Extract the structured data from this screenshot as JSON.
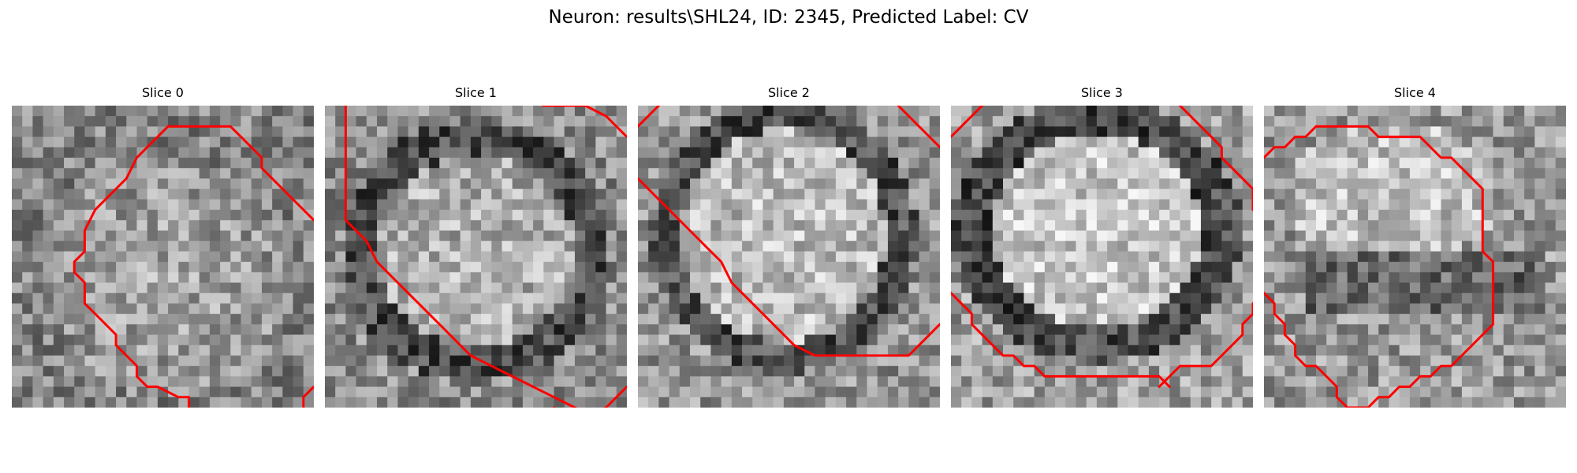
{
  "figure": {
    "title": "Neuron: results\\SHL24, ID: 2345, Predicted Label: CV"
  },
  "image_grid": {
    "cols": 29,
    "rows": 29
  },
  "contour_color": "#ff0000",
  "slices": [
    {
      "title": "Slice 0",
      "contours": [
        [
          [
            15,
            2
          ],
          [
            14,
            3
          ],
          [
            12,
            5
          ],
          [
            11,
            7
          ],
          [
            8,
            10
          ],
          [
            7,
            12
          ],
          [
            7,
            14
          ],
          [
            6,
            15
          ],
          [
            6,
            16
          ],
          [
            7,
            17
          ],
          [
            7,
            19
          ],
          [
            8,
            20
          ],
          [
            9,
            21
          ],
          [
            10,
            22
          ],
          [
            10,
            23
          ],
          [
            11,
            24
          ],
          [
            12,
            25
          ],
          [
            12,
            26
          ],
          [
            13,
            27
          ],
          [
            14,
            27
          ],
          [
            16,
            28
          ],
          [
            17,
            28
          ],
          [
            17,
            29
          ]
        ],
        [
          [
            29,
            11
          ],
          [
            27,
            9
          ],
          [
            25,
            7
          ],
          [
            24,
            6
          ],
          [
            24,
            5
          ],
          [
            23,
            4
          ],
          [
            22,
            3
          ],
          [
            21,
            2
          ],
          [
            19,
            2
          ],
          [
            17,
            2
          ],
          [
            15,
            2
          ]
        ],
        [
          [
            28,
            29
          ],
          [
            28,
            28
          ],
          [
            29,
            27
          ]
        ]
      ]
    },
    {
      "title": "Slice 1",
      "contours": [
        [
          [
            29,
            3
          ],
          [
            28,
            2
          ],
          [
            27,
            1
          ],
          [
            25,
            0
          ],
          [
            23,
            0
          ],
          [
            21,
            0
          ],
          [
            19,
            -1
          ],
          [
            17,
            -2
          ],
          [
            15,
            -2
          ],
          [
            12,
            -2
          ],
          [
            10,
            -2
          ],
          [
            8,
            -2
          ],
          [
            5,
            -2
          ],
          [
            2,
            -1
          ],
          [
            2,
            0
          ],
          [
            2,
            3
          ],
          [
            2,
            5
          ],
          [
            2,
            8
          ],
          [
            2,
            11
          ],
          [
            3,
            12
          ],
          [
            4,
            13
          ],
          [
            5,
            15
          ],
          [
            6,
            16
          ],
          [
            7,
            17
          ],
          [
            9,
            19
          ],
          [
            11,
            21
          ],
          [
            12,
            22
          ],
          [
            13,
            23
          ],
          [
            14,
            24
          ],
          [
            16,
            25
          ],
          [
            18,
            26
          ],
          [
            20,
            27
          ],
          [
            22,
            28
          ],
          [
            24,
            29
          ],
          [
            26,
            30
          ],
          [
            28,
            31
          ],
          [
            29,
            32
          ]
        ],
        [
          [
            22,
            29
          ],
          [
            23,
            30
          ],
          [
            24,
            30
          ],
          [
            25,
            30
          ],
          [
            27,
            29
          ],
          [
            28,
            28
          ],
          [
            29,
            27
          ]
        ]
      ]
    },
    {
      "title": "Slice 2",
      "contours": [
        [
          [
            0,
            7
          ],
          [
            2,
            9
          ],
          [
            4,
            11
          ],
          [
            5,
            12
          ],
          [
            7,
            14
          ],
          [
            8,
            15
          ],
          [
            9,
            17
          ],
          [
            10,
            18
          ],
          [
            11,
            19
          ],
          [
            12,
            20
          ],
          [
            13,
            21
          ],
          [
            14,
            22
          ],
          [
            15,
            23
          ],
          [
            17,
            24
          ],
          [
            19,
            24
          ],
          [
            21,
            24
          ],
          [
            23,
            24
          ],
          [
            25,
            24
          ],
          [
            26,
            24
          ],
          [
            27,
            23
          ],
          [
            28,
            22
          ],
          [
            29,
            21
          ]
        ],
        [
          [
            29,
            4
          ],
          [
            28,
            3
          ],
          [
            27,
            2
          ],
          [
            26,
            1
          ],
          [
            25,
            0
          ],
          [
            24,
            -1
          ],
          [
            23,
            -2
          ],
          [
            21,
            -3
          ],
          [
            19,
            -4
          ],
          [
            17,
            -5
          ]
        ],
        [
          [
            0,
            2
          ],
          [
            1,
            1
          ],
          [
            2,
            0
          ],
          [
            3,
            -1
          ],
          [
            4,
            -2
          ],
          [
            5,
            -3
          ]
        ]
      ]
    },
    {
      "title": "Slice 3",
      "contours": [
        [
          [
            0,
            3
          ],
          [
            1,
            2
          ],
          [
            2,
            1
          ],
          [
            3,
            0
          ],
          [
            4,
            -1
          ],
          [
            5,
            -2
          ],
          [
            6,
            -3
          ],
          [
            8,
            -4
          ],
          [
            10,
            -4
          ],
          [
            12,
            -4
          ],
          [
            14,
            -4
          ],
          [
            15,
            -3
          ],
          [
            17,
            -3
          ],
          [
            19,
            -3
          ],
          [
            20,
            -2
          ],
          [
            21,
            -1
          ],
          [
            22,
            0
          ],
          [
            23,
            1
          ],
          [
            24,
            2
          ],
          [
            25,
            3
          ],
          [
            26,
            4
          ],
          [
            26,
            5
          ],
          [
            27,
            6
          ],
          [
            28,
            7
          ],
          [
            29,
            8
          ],
          [
            29,
            9
          ],
          [
            29,
            10
          ],
          [
            30,
            11
          ],
          [
            30,
            12
          ],
          [
            30,
            14
          ],
          [
            30,
            16
          ],
          [
            30,
            18
          ],
          [
            29,
            19
          ],
          [
            29,
            20
          ],
          [
            28,
            21
          ],
          [
            28,
            22
          ],
          [
            27,
            23
          ],
          [
            26,
            24
          ],
          [
            25,
            25
          ],
          [
            24,
            25
          ],
          [
            23,
            25
          ],
          [
            22,
            25
          ],
          [
            21,
            26
          ],
          [
            20,
            27
          ]
        ],
        [
          [
            0,
            18
          ],
          [
            1,
            19
          ],
          [
            2,
            20
          ],
          [
            2,
            21
          ],
          [
            3,
            22
          ],
          [
            4,
            23
          ],
          [
            5,
            24
          ],
          [
            6,
            24
          ],
          [
            7,
            25
          ],
          [
            8,
            25
          ],
          [
            9,
            26
          ],
          [
            10,
            26
          ],
          [
            12,
            26
          ],
          [
            14,
            26
          ],
          [
            16,
            26
          ],
          [
            18,
            26
          ],
          [
            20,
            26
          ],
          [
            21,
            27
          ]
        ]
      ]
    },
    {
      "title": "Slice 4",
      "contours": [
        [
          [
            0,
            5
          ],
          [
            1,
            4
          ],
          [
            2,
            4
          ],
          [
            3,
            3
          ],
          [
            4,
            3
          ],
          [
            5,
            2
          ],
          [
            6,
            2
          ],
          [
            8,
            2
          ],
          [
            10,
            2
          ],
          [
            11,
            3
          ],
          [
            12,
            3
          ],
          [
            13,
            3
          ],
          [
            14,
            3
          ],
          [
            15,
            3
          ],
          [
            16,
            4
          ],
          [
            17,
            5
          ],
          [
            18,
            5
          ],
          [
            19,
            6
          ],
          [
            20,
            7
          ],
          [
            21,
            8
          ],
          [
            21,
            9
          ],
          [
            21,
            11
          ],
          [
            21,
            12
          ],
          [
            21,
            14
          ],
          [
            22,
            15
          ],
          [
            22,
            17
          ],
          [
            22,
            19
          ],
          [
            22,
            21
          ],
          [
            21,
            22
          ],
          [
            20,
            23
          ],
          [
            19,
            24
          ],
          [
            18,
            25
          ],
          [
            17,
            25
          ],
          [
            16,
            26
          ],
          [
            15,
            26
          ],
          [
            14,
            27
          ],
          [
            13,
            27
          ],
          [
            12,
            28
          ],
          [
            11,
            28
          ],
          [
            10,
            29
          ],
          [
            9,
            29
          ],
          [
            8,
            29
          ],
          [
            7,
            28
          ],
          [
            7,
            27
          ],
          [
            6,
            26
          ],
          [
            5,
            25
          ],
          [
            4,
            25
          ],
          [
            3,
            24
          ],
          [
            3,
            23
          ],
          [
            2,
            22
          ],
          [
            2,
            21
          ],
          [
            1,
            20
          ],
          [
            1,
            19
          ],
          [
            0,
            18
          ]
        ]
      ]
    }
  ]
}
